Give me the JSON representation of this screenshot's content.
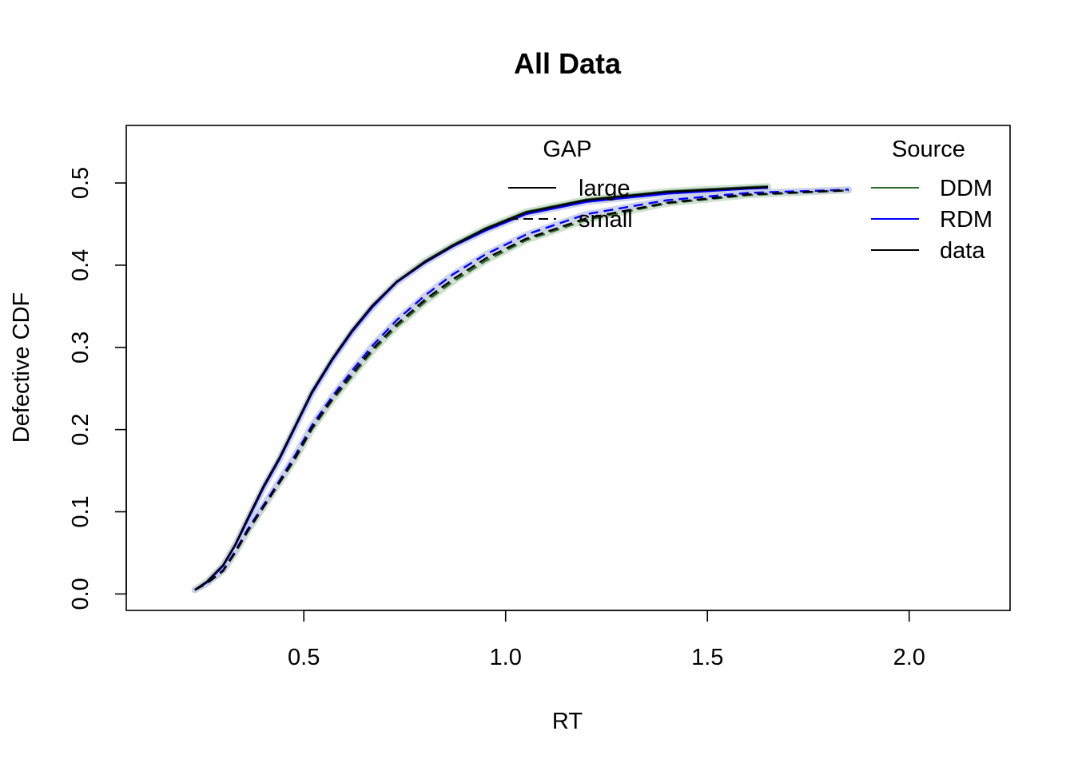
{
  "chart_data": {
    "type": "line",
    "title": "All Data",
    "xlabel": "RT",
    "ylabel": "Defective CDF",
    "xlim": [
      0.06,
      2.25
    ],
    "ylim": [
      -0.02,
      0.57
    ],
    "x_ticks": [
      "0.5",
      "1.0",
      "1.5",
      "2.0"
    ],
    "x_tick_values": [
      0.5,
      1.0,
      1.5,
      2.0
    ],
    "y_ticks": [
      "0.0",
      "0.1",
      "0.2",
      "0.3",
      "0.4",
      "0.5"
    ],
    "y_tick_values": [
      0.0,
      0.1,
      0.2,
      0.3,
      0.4,
      0.5
    ],
    "grid": false,
    "legends": [
      {
        "title": "GAP",
        "placement": "top-center",
        "entries": [
          {
            "label": "large",
            "dash": "solid"
          },
          {
            "label": "small",
            "dash": "dashed"
          }
        ]
      },
      {
        "title": "Source",
        "placement": "top-right",
        "entries": [
          {
            "label": "DDM",
            "color": "#2e6b2e"
          },
          {
            "label": "RDM",
            "color": "#0000ff"
          },
          {
            "label": "data",
            "color": "#000000"
          }
        ]
      }
    ],
    "series": [
      {
        "source": "DDM",
        "gap": "large",
        "color": "#2e6b2e",
        "band_color": "#c8dcc8",
        "dash": "solid",
        "x": [
          0.23,
          0.26,
          0.3,
          0.33,
          0.36,
          0.4,
          0.44,
          0.48,
          0.52,
          0.57,
          0.62,
          0.67,
          0.73,
          0.8,
          0.87,
          0.95,
          1.05,
          1.2,
          1.4,
          1.6,
          1.65
        ],
        "y": [
          0.005,
          0.015,
          0.035,
          0.06,
          0.09,
          0.13,
          0.165,
          0.205,
          0.245,
          0.285,
          0.32,
          0.35,
          0.38,
          0.405,
          0.425,
          0.445,
          0.465,
          0.48,
          0.49,
          0.495,
          0.496
        ]
      },
      {
        "source": "RDM",
        "gap": "large",
        "color": "#0000ff",
        "band_color": "#c6cce6",
        "dash": "solid",
        "x": [
          0.23,
          0.26,
          0.3,
          0.33,
          0.36,
          0.4,
          0.44,
          0.48,
          0.52,
          0.57,
          0.62,
          0.67,
          0.73,
          0.8,
          0.87,
          0.95,
          1.05,
          1.2,
          1.4,
          1.6,
          1.65
        ],
        "y": [
          0.005,
          0.014,
          0.034,
          0.059,
          0.089,
          0.129,
          0.164,
          0.204,
          0.244,
          0.284,
          0.319,
          0.349,
          0.379,
          0.403,
          0.423,
          0.442,
          0.462,
          0.477,
          0.487,
          0.493,
          0.494
        ]
      },
      {
        "source": "data",
        "gap": "large",
        "color": "#000000",
        "dash": "solid",
        "x": [
          0.23,
          0.26,
          0.3,
          0.33,
          0.36,
          0.4,
          0.44,
          0.48,
          0.52,
          0.57,
          0.62,
          0.67,
          0.73,
          0.8,
          0.87,
          0.95,
          1.05,
          1.2,
          1.4,
          1.6,
          1.65
        ],
        "y": [
          0.005,
          0.015,
          0.035,
          0.06,
          0.091,
          0.131,
          0.166,
          0.206,
          0.246,
          0.286,
          0.321,
          0.351,
          0.38,
          0.404,
          0.424,
          0.444,
          0.464,
          0.479,
          0.489,
          0.494,
          0.495
        ]
      },
      {
        "source": "DDM",
        "gap": "small",
        "color": "#2e6b2e",
        "band_color": "#c8dcc8",
        "dash": "dashed",
        "x": [
          0.23,
          0.26,
          0.3,
          0.33,
          0.36,
          0.4,
          0.44,
          0.48,
          0.52,
          0.57,
          0.62,
          0.67,
          0.73,
          0.8,
          0.87,
          0.95,
          1.05,
          1.2,
          1.4,
          1.6,
          1.8,
          1.85
        ],
        "y": [
          0.005,
          0.013,
          0.028,
          0.05,
          0.075,
          0.105,
          0.135,
          0.165,
          0.2,
          0.235,
          0.265,
          0.295,
          0.325,
          0.355,
          0.38,
          0.405,
          0.43,
          0.455,
          0.475,
          0.485,
          0.49,
          0.491
        ]
      },
      {
        "source": "RDM",
        "gap": "small",
        "color": "#0000ff",
        "band_color": "#c6cce6",
        "dash": "dashed",
        "x": [
          0.23,
          0.26,
          0.3,
          0.33,
          0.36,
          0.4,
          0.44,
          0.48,
          0.52,
          0.57,
          0.62,
          0.67,
          0.73,
          0.8,
          0.87,
          0.95,
          1.05,
          1.2,
          1.4,
          1.6,
          1.8,
          1.85
        ],
        "y": [
          0.005,
          0.013,
          0.029,
          0.052,
          0.078,
          0.108,
          0.138,
          0.17,
          0.205,
          0.24,
          0.272,
          0.302,
          0.333,
          0.363,
          0.389,
          0.413,
          0.437,
          0.462,
          0.479,
          0.488,
          0.491,
          0.492
        ]
      },
      {
        "source": "data",
        "gap": "small",
        "color": "#000000",
        "dash": "dashed",
        "x": [
          0.23,
          0.26,
          0.3,
          0.33,
          0.36,
          0.4,
          0.44,
          0.48,
          0.52,
          0.57,
          0.62,
          0.67,
          0.73,
          0.8,
          0.87,
          0.95,
          1.05,
          1.2,
          1.4,
          1.6,
          1.8,
          1.85
        ],
        "y": [
          0.005,
          0.013,
          0.028,
          0.051,
          0.076,
          0.106,
          0.136,
          0.167,
          0.202,
          0.237,
          0.268,
          0.298,
          0.328,
          0.358,
          0.383,
          0.408,
          0.432,
          0.457,
          0.476,
          0.486,
          0.49,
          0.491
        ]
      }
    ]
  }
}
